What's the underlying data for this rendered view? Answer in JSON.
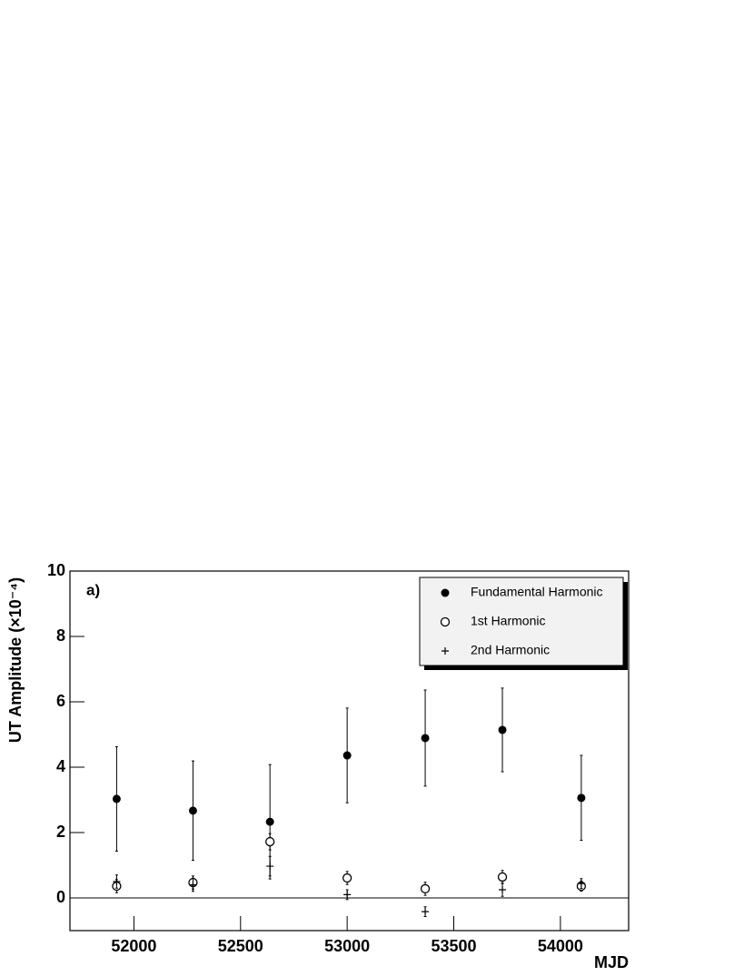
{
  "chart_data": {
    "type": "scatter",
    "annotation": "a)",
    "xlabel": "MJD",
    "ylabel": "UT Amplitude (×10⁻⁴)",
    "xlim": [
      51700,
      54320
    ],
    "xticks": [
      52000,
      52500,
      53000,
      53500,
      54000
    ],
    "ylim": [
      -1,
      10
    ],
    "yticks": [
      0,
      2,
      4,
      6,
      8,
      10
    ],
    "x": [
      51919,
      52277,
      52638,
      53000,
      53366,
      53728,
      54098
    ],
    "legend": "upper right",
    "series": [
      {
        "name": "Fundamental Harmonic",
        "color": "#000000",
        "marker": "filled-circle",
        "values": [
          3.03,
          2.67,
          2.33,
          4.36,
          4.89,
          5.14,
          3.06
        ],
        "errors": [
          1.6,
          1.52,
          1.75,
          1.45,
          1.47,
          1.28,
          1.3
        ]
      },
      {
        "name": "1st Harmonic",
        "color": "#000000",
        "marker": "open-circle",
        "values": [
          0.36,
          0.47,
          1.72,
          0.61,
          0.28,
          0.64,
          0.36
        ],
        "errors": [
          0.2,
          0.2,
          0.25,
          0.2,
          0.2,
          0.2,
          0.15
        ]
      },
      {
        "name": "2nd Harmonic",
        "color": "#000000",
        "marker": "plus",
        "values": [
          0.5,
          0.4,
          0.97,
          0.1,
          -0.42,
          0.25,
          0.44
        ],
        "errors": [
          0.2,
          0.2,
          0.3,
          0.15,
          0.15,
          0.2,
          0.15
        ]
      }
    ]
  }
}
